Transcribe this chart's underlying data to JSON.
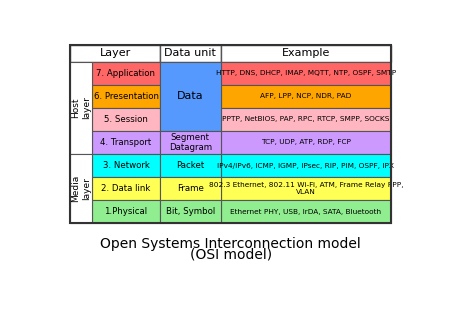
{
  "title_line1": "Open Systems Interconnection model",
  "title_line2": "(OSI model)",
  "title_fontsize": 10,
  "rows": [
    {
      "num": 1,
      "layer": "1.Physical",
      "layer_color": "#90EE90",
      "data_unit": "Bit, Symbol",
      "example": "Ethernet PHY, USB, IrDA, SATA, Bluetooth",
      "example_color": "#90EE90"
    },
    {
      "num": 2,
      "layer": "2. Data link",
      "layer_color": "#FFFF55",
      "data_unit": "Frame",
      "example": "802.3 Ethernet, 802.11 Wi-Fi, ATM, Frame Relay PPP,\nVLAN",
      "example_color": "#FFFF55"
    },
    {
      "num": 3,
      "layer": "3. Network",
      "layer_color": "#00FFFF",
      "data_unit": "Packet",
      "example": "IPv4/IPv6, ICMP, IGMP, IPsec, RIP, PIM, OSPF, IPX",
      "example_color": "#00FFFF"
    },
    {
      "num": 4,
      "layer": "4. Transport",
      "layer_color": "#CC99FF",
      "data_unit": "Segment\nDatagram",
      "example": "TCP, UDP, ATP, RDP, FCP",
      "example_color": "#CC99FF"
    },
    {
      "num": 5,
      "layer": "5. Session",
      "layer_color": "#FFB6C1",
      "example": "PPTP, NetBIOS, PAP, RPC, RTCP, SMPP, SOCKS",
      "example_color": "#FFB6C1"
    },
    {
      "num": 6,
      "layer": "6. Presentation",
      "layer_color": "#FFA500",
      "example": "AFP, LPP, NCP, NDR, PAD",
      "example_color": "#FFA500"
    },
    {
      "num": 7,
      "layer": "7. Application",
      "layer_color": "#FF6666",
      "example": "HTTP, DNS, DHCP, IMAP, MQTT, NTP, OSPF, SMTP",
      "example_color": "#FF6666"
    }
  ],
  "data_unit_merged_color": "#5599FF",
  "data_unit_merged_text": "Data",
  "border_color": "#555555",
  "bg_color": "#ffffff",
  "host_layer_rows": [
    3,
    4,
    5,
    6
  ],
  "media_layer_rows": [
    0,
    1,
    2
  ]
}
